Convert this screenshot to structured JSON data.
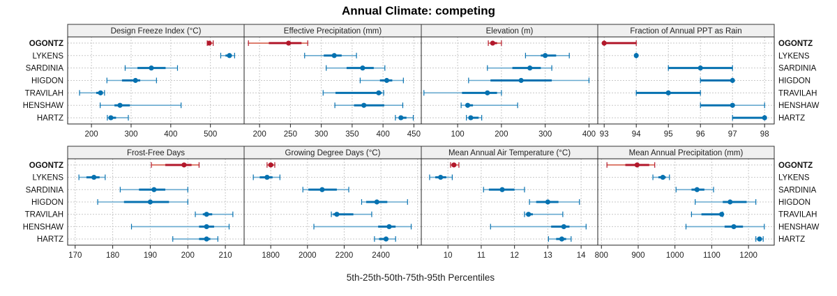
{
  "chart_data": {
    "type": "dot-whisker",
    "title": "Annual Climate: competing",
    "xlabel": "5th-25th-50th-75th-95th Percentiles",
    "ylabel": "",
    "grid": true,
    "layout": "2 rows x 4 columns of panels",
    "categories": [
      "OGONTZ",
      "LYKENS",
      "SARDINIA",
      "HIGDON",
      "TRAVILAH",
      "HENSHAW",
      "HARTZ"
    ],
    "highlight_category": "OGONTZ",
    "colors": {
      "highlight": "#b2182b",
      "other": "#0571b0",
      "other_light": "#67a9cf",
      "highlight_light": "#d6604d",
      "strip_bg": "#f0f0f0",
      "grid": "#c8c8c8"
    },
    "percentile_keys": [
      "p5",
      "p25",
      "p50",
      "p75",
      "p95"
    ],
    "panels": [
      {
        "title": "Design Freeze Index (°C)",
        "xlim": [
          140,
          585
        ],
        "ticks": [
          200,
          300,
          400,
          500
        ],
        "values": {
          "OGONTZ": [
            492,
            494,
            497,
            501,
            507
          ],
          "LYKENS": [
            526,
            538,
            548,
            554,
            561
          ],
          "SARDINIA": [
            285,
            316,
            351,
            387,
            417
          ],
          "HIGDON": [
            239,
            277,
            311,
            323,
            364
          ],
          "TRAVILAH": [
            170,
            212,
            223,
            228,
            233
          ],
          "HENSHAW": [
            222,
            258,
            272,
            297,
            426
          ],
          "HARTZ": [
            240,
            243,
            249,
            262,
            293
          ]
        }
      },
      {
        "title": "Effective Precipitation (mm)",
        "xlim": [
          175,
          462
        ],
        "ticks": [
          200,
          250,
          300,
          350,
          400,
          450
        ],
        "values": {
          "OGONTZ": [
            182,
            215,
            247,
            268,
            278
          ],
          "LYKENS": [
            273,
            304,
            321,
            333,
            357
          ],
          "SARDINIA": [
            308,
            341,
            367,
            385,
            403
          ],
          "HIGDON": [
            363,
            395,
            406,
            415,
            433
          ],
          "TRAVILAH": [
            303,
            323,
            393,
            398,
            401
          ],
          "HENSHAW": [
            322,
            353,
            369,
            402,
            432
          ],
          "HARTZ": [
            420,
            427,
            429,
            438,
            449
          ]
        }
      },
      {
        "title": "Elevation (m)",
        "xlim": [
          17,
          420
        ],
        "ticks": [
          100,
          200,
          300,
          400
        ],
        "values": {
          "OGONTZ": [
            170,
            175,
            180,
            190,
            200
          ],
          "LYKENS": [
            255,
            290,
            300,
            325,
            355
          ],
          "SARDINIA": [
            168,
            225,
            265,
            290,
            315
          ],
          "HIGDON": [
            125,
            175,
            245,
            315,
            400
          ],
          "TRAVILAH": [
            23,
            110,
            168,
            190,
            200
          ],
          "HENSHAW": [
            108,
            118,
            123,
            135,
            237
          ],
          "HARTZ": [
            120,
            125,
            130,
            148,
            155
          ]
        }
      },
      {
        "title": "Fraction of Annual PPT as Rain",
        "xlim": [
          92.8,
          98.3
        ],
        "ticks": [
          93,
          94,
          95,
          96,
          97,
          98
        ],
        "values": {
          "OGONTZ": [
            93,
            93,
            93,
            94,
            94
          ],
          "LYKENS": [
            94,
            94,
            94,
            94,
            94
          ],
          "SARDINIA": [
            95,
            95,
            96,
            97,
            97
          ],
          "HIGDON": [
            96,
            96,
            97,
            97,
            97
          ],
          "TRAVILAH": [
            94,
            94,
            95,
            96,
            96
          ],
          "HENSHAW": [
            96,
            96,
            97,
            97,
            98
          ],
          "HARTZ": [
            97,
            97,
            98,
            98,
            98
          ]
        }
      },
      {
        "title": "Frost-Free Days",
        "xlim": [
          168,
          215
        ],
        "ticks": [
          170,
          180,
          190,
          200,
          210
        ],
        "values": {
          "OGONTZ": [
            190.3,
            194,
            199,
            201,
            203
          ],
          "LYKENS": [
            171,
            173,
            175,
            176.5,
            178
          ],
          "SARDINIA": [
            182,
            187,
            191,
            194,
            200
          ],
          "HIGDON": [
            176,
            183,
            190,
            195,
            200
          ],
          "TRAVILAH": [
            202,
            204,
            205,
            206.5,
            212
          ],
          "HENSHAW": [
            185,
            203,
            205,
            207,
            211
          ],
          "HARTZ": [
            196,
            203,
            205,
            206,
            208
          ]
        }
      },
      {
        "title": "Growing Degree Days (°C)",
        "xlim": [
          1655,
          2620
        ],
        "ticks": [
          1800,
          2000,
          2200,
          2400,
          2600
        ],
        "tick_labels": [
          "1800",
          "2000",
          "2200",
          "2400",
          ""
        ],
        "values": {
          "OGONTZ": [
            1780,
            1790,
            1800,
            1815,
            1822
          ],
          "LYKENS": [
            1705,
            1740,
            1780,
            1810,
            1850
          ],
          "SARDINIA": [
            1975,
            2005,
            2080,
            2160,
            2225
          ],
          "HIGDON": [
            2295,
            2320,
            2378,
            2435,
            2545
          ],
          "TRAVILAH": [
            2130,
            2140,
            2160,
            2250,
            2350
          ],
          "HENSHAW": [
            2035,
            2385,
            2445,
            2480,
            2565
          ],
          "HARTZ": [
            2365,
            2390,
            2428,
            2440,
            2480
          ]
        }
      },
      {
        "title": "Mean Annual Air Temperature (°C)",
        "xlim": [
          9.2,
          14.5
        ],
        "ticks": [
          10,
          11,
          12,
          13,
          14
        ],
        "values": {
          "OGONTZ": [
            10.08,
            10.12,
            10.18,
            10.25,
            10.33
          ],
          "LYKENS": [
            9.45,
            9.62,
            9.78,
            9.95,
            10.13
          ],
          "SARDINIA": [
            11.07,
            11.23,
            11.63,
            12.0,
            12.3
          ],
          "HIGDON": [
            12.45,
            12.65,
            13.0,
            13.32,
            13.95
          ],
          "TRAVILAH": [
            12.3,
            12.35,
            12.42,
            12.55,
            13.45
          ],
          "HENSHAW": [
            11.28,
            13.1,
            13.48,
            13.65,
            14.15
          ],
          "HARTZ": [
            13.02,
            13.25,
            13.42,
            13.55,
            13.7
          ]
        }
      },
      {
        "title": "Mean Annual Precipitation (mm)",
        "xlim": [
          790,
          1270
        ],
        "ticks": [
          800,
          900,
          1000,
          1100,
          1200
        ],
        "values": {
          "OGONTZ": [
            815,
            865,
            897,
            930,
            945
          ],
          "LYKENS": [
            940,
            955,
            967,
            975,
            985
          ],
          "SARDINIA": [
            1003,
            1045,
            1060,
            1080,
            1105
          ],
          "HIGDON": [
            1055,
            1130,
            1150,
            1195,
            1220
          ],
          "TRAVILAH": [
            1045,
            1072,
            1127,
            1128,
            1130
          ],
          "HENSHAW": [
            1030,
            1135,
            1160,
            1185,
            1243
          ],
          "HARTZ": [
            1220,
            1225,
            1230,
            1235,
            1240
          ]
        }
      }
    ]
  }
}
